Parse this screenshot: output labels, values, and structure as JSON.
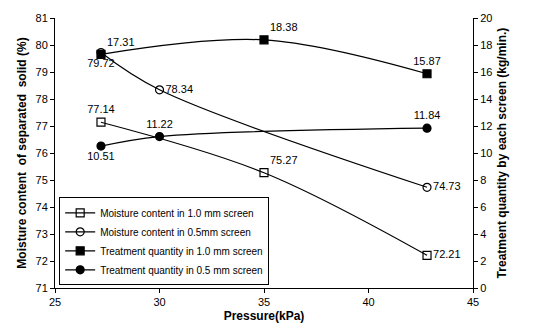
{
  "chart_data": {
    "type": "line",
    "x_label": "Pressure(kPa)",
    "y_label": "Moisture content  of separated  solid (%)",
    "y2_label": "Treatment quantity by each screen (kg/min.)",
    "xlim": [
      25,
      45
    ],
    "xticks": [
      25,
      30,
      35,
      40,
      45
    ],
    "ylim": [
      71,
      81
    ],
    "yticks": [
      71,
      72,
      73,
      74,
      75,
      76,
      77,
      78,
      79,
      80,
      81
    ],
    "y2lim": [
      0,
      20
    ],
    "y2ticks": [
      0,
      2,
      4,
      6,
      8,
      10,
      12,
      14,
      16,
      18,
      20
    ],
    "grid": false,
    "legend": "lower left",
    "data_labels": true,
    "series": [
      {
        "name": "Moisture content in 1.0 mm screen",
        "color": "#000000",
        "marker": "square-open",
        "line_style": "solid",
        "x": [
          27.2,
          35,
          42.8
        ],
        "values": [
          77.14,
          75.27,
          72.21
        ]
      },
      {
        "name": "Moisture content in 0.5mm screen",
        "color": "#000000",
        "marker": "circle-open",
        "line_style": "solid",
        "x": [
          27.2,
          30,
          42.8
        ],
        "values": [
          79.72,
          78.34,
          74.73
        ]
      },
      {
        "name": "Treatment quantity in 1.0 mm screen",
        "color": "#000000",
        "marker": "square",
        "line_style": "solid",
        "axis": "y2",
        "x": [
          27.2,
          35,
          42.8
        ],
        "values": [
          17.31,
          18.38,
          15.87
        ]
      },
      {
        "name": "Treatment quantity in 0.5 mm screen",
        "color": "#000000",
        "marker": "circle",
        "line_style": "solid",
        "axis": "y2",
        "x": [
          27.2,
          30,
          42.8
        ],
        "values": [
          10.51,
          11.22,
          11.84
        ]
      }
    ]
  }
}
